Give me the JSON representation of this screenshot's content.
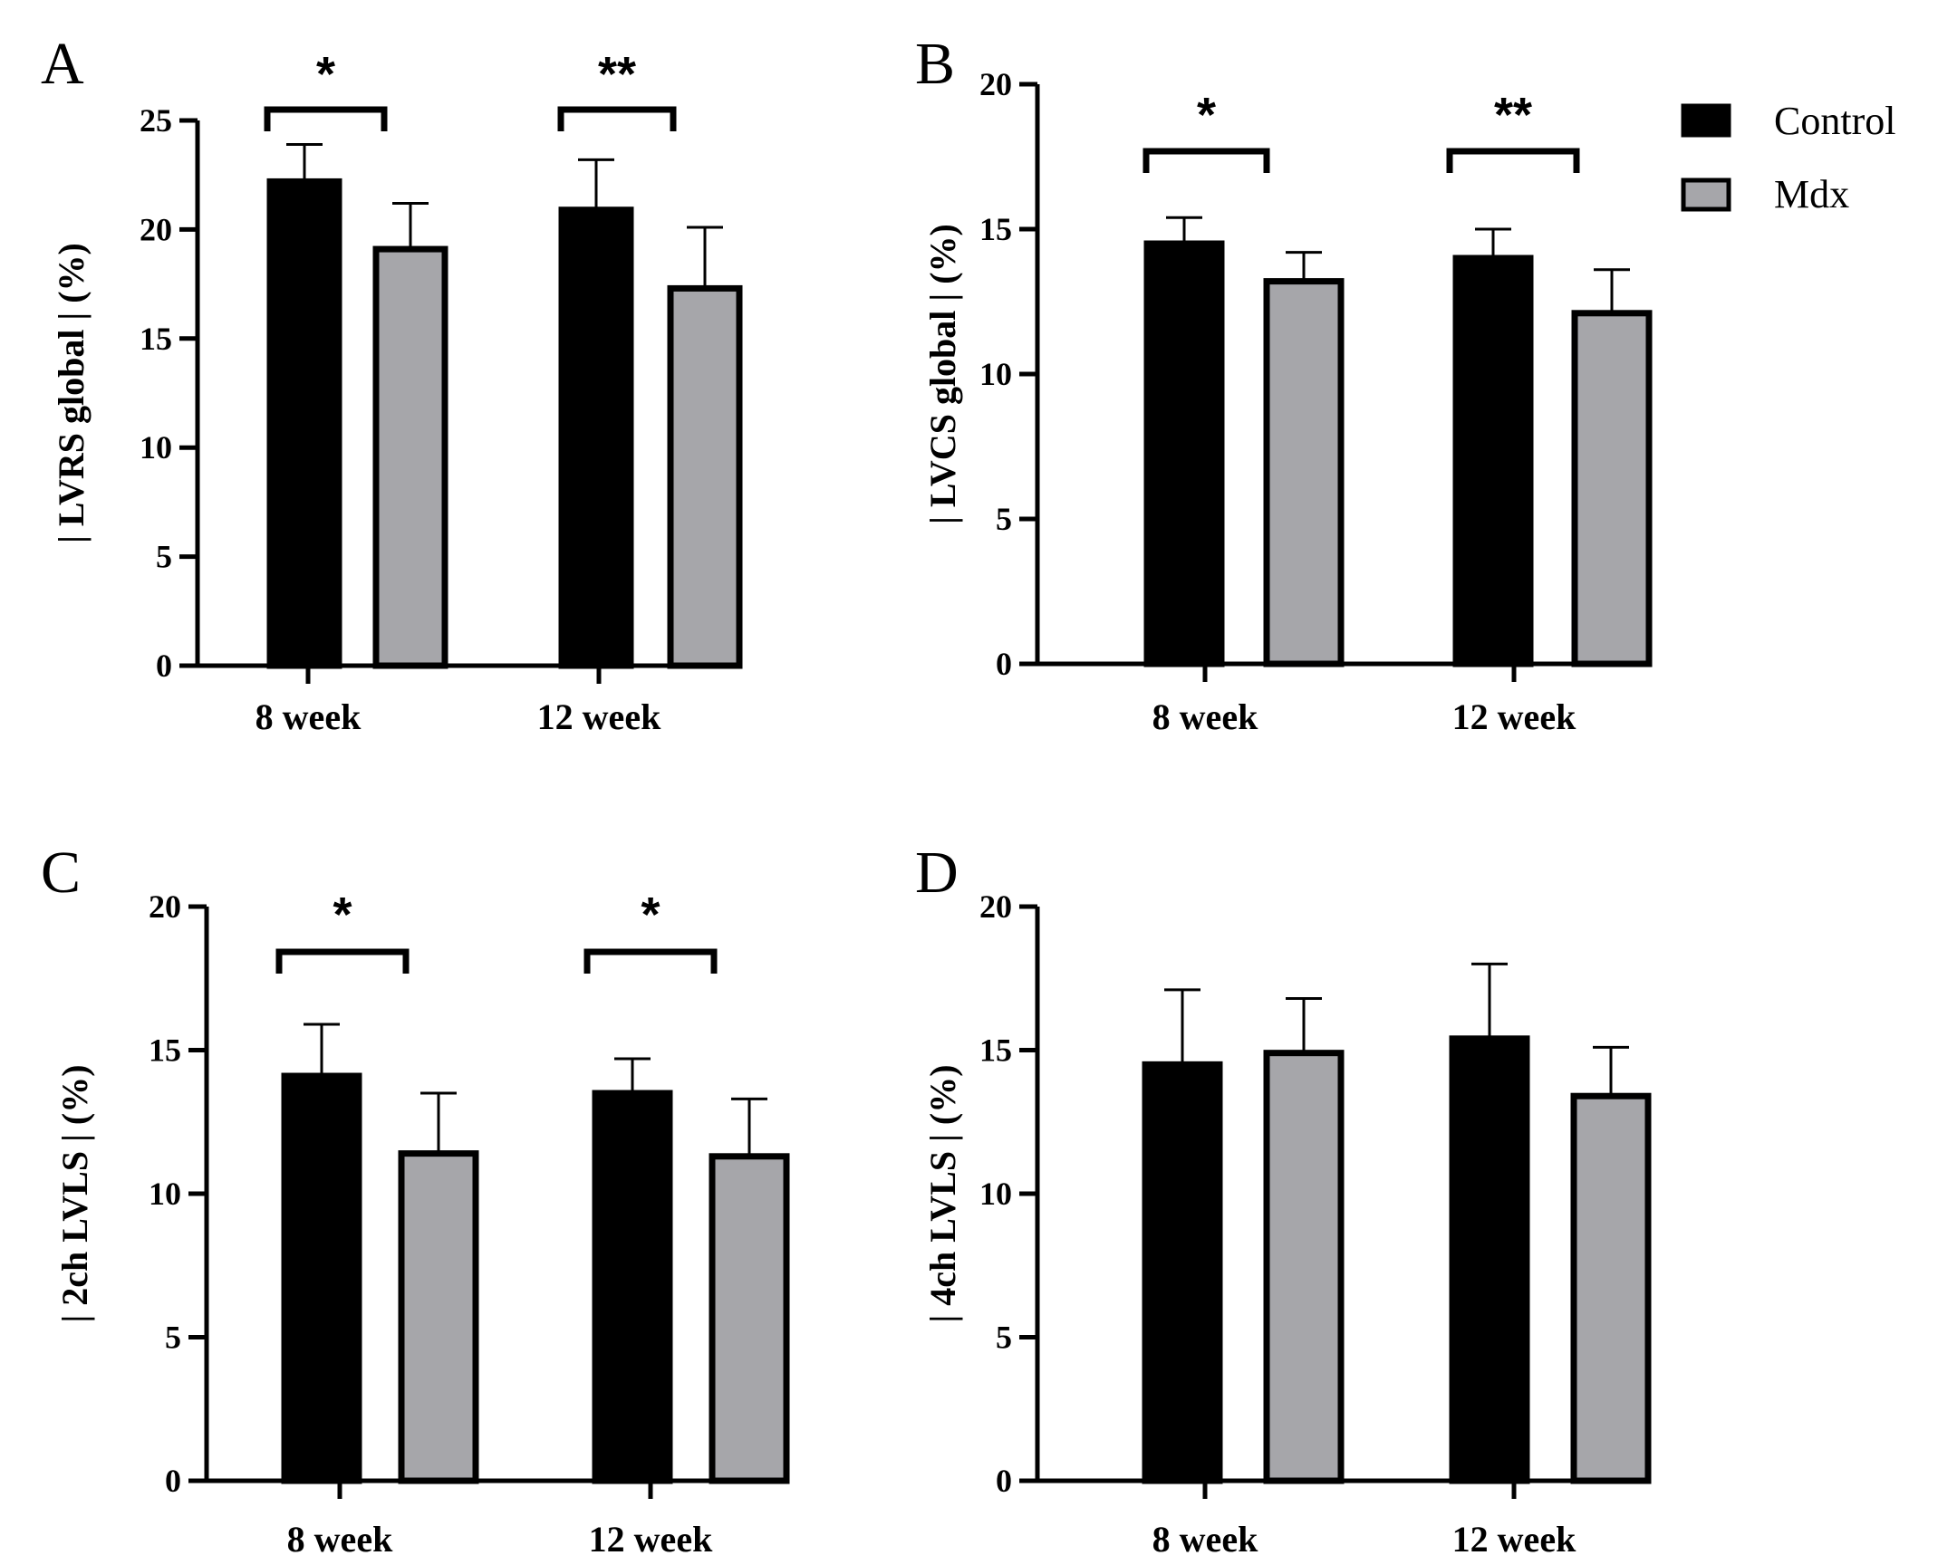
{
  "legend": [
    {
      "name": "Control",
      "color": "#000000"
    },
    {
      "name": "Mdx",
      "color": "#a6a6aa"
    }
  ],
  "chart_data": [
    {
      "panel": "A",
      "type": "bar",
      "ylabel": "| LVRS global | (%)",
      "ylim": [
        0,
        25
      ],
      "yticks": [
        0,
        5,
        10,
        15,
        20,
        25
      ],
      "categories": [
        "8 week",
        "12 week"
      ],
      "series": [
        {
          "name": "Control",
          "values": [
            22.2,
            20.9
          ],
          "errors": [
            1.7,
            2.3
          ]
        },
        {
          "name": "Mdx",
          "values": [
            19.1,
            17.3
          ],
          "errors": [
            2.1,
            2.8
          ]
        }
      ],
      "significance": [
        "*",
        "**"
      ]
    },
    {
      "panel": "B",
      "type": "bar",
      "ylabel": "| LVCS global | (%)",
      "ylim": [
        0,
        20
      ],
      "yticks": [
        0,
        5,
        10,
        15,
        20
      ],
      "categories": [
        "8 week",
        "12 week"
      ],
      "series": [
        {
          "name": "Control",
          "values": [
            14.5,
            14.0
          ],
          "errors": [
            0.9,
            1.0
          ]
        },
        {
          "name": "Mdx",
          "values": [
            13.2,
            12.1
          ],
          "errors": [
            1.0,
            1.5
          ]
        }
      ],
      "significance": [
        "*",
        "**"
      ]
    },
    {
      "panel": "C",
      "type": "bar",
      "ylabel": "| 2ch LVLS | (%)",
      "ylim": [
        0,
        20
      ],
      "yticks": [
        0,
        5,
        10,
        15,
        20
      ],
      "categories": [
        "8 week",
        "12 week"
      ],
      "series": [
        {
          "name": "Control",
          "values": [
            14.1,
            13.5
          ],
          "errors": [
            1.8,
            1.2
          ]
        },
        {
          "name": "Mdx",
          "values": [
            11.4,
            11.3
          ],
          "errors": [
            2.1,
            2.0
          ]
        }
      ],
      "significance": [
        "*",
        "*"
      ]
    },
    {
      "panel": "D",
      "type": "bar",
      "ylabel": "| 4ch LVLS | (%)",
      "ylim": [
        0,
        20
      ],
      "yticks": [
        0,
        5,
        10,
        15,
        20
      ],
      "categories": [
        "8 week",
        "12 week"
      ],
      "series": [
        {
          "name": "Control",
          "values": [
            14.5,
            15.4
          ],
          "errors": [
            2.6,
            2.6
          ]
        },
        {
          "name": "Mdx",
          "values": [
            14.9,
            13.4
          ],
          "errors": [
            1.9,
            1.7
          ]
        }
      ],
      "significance": []
    }
  ]
}
